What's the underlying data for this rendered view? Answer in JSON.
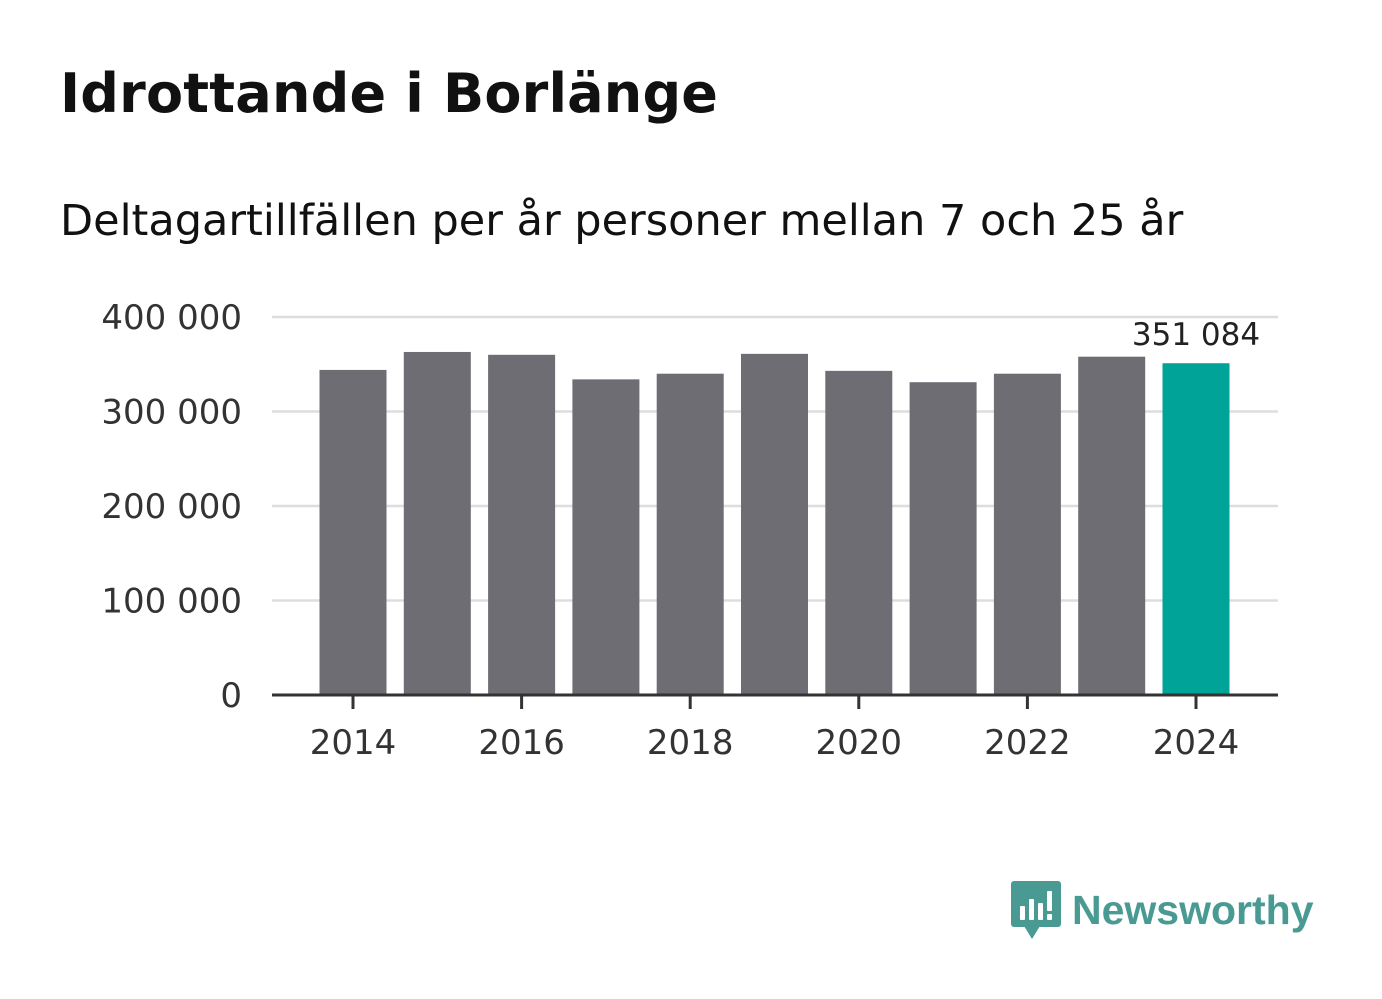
{
  "header": {
    "title": "Idrottande i Borlänge",
    "subtitle": "Deltagartillfällen per år personer mellan 7 och 25 år"
  },
  "chart_data": {
    "type": "bar",
    "title": "Idrottande i Borlänge",
    "subtitle": "Deltagartillfällen per år personer mellan 7 och 25 år",
    "xlabel": "",
    "ylabel": "",
    "categories": [
      "2014",
      "2015",
      "2016",
      "2017",
      "2018",
      "2019",
      "2020",
      "2021",
      "2022",
      "2023",
      "2024"
    ],
    "values": [
      344000,
      363000,
      360000,
      334000,
      340000,
      361000,
      343000,
      331000,
      340000,
      358000,
      351084
    ],
    "x_tick_labels": [
      "2014",
      "2016",
      "2018",
      "2020",
      "2022",
      "2024"
    ],
    "y_ticks": [
      0,
      100000,
      200000,
      300000,
      400000
    ],
    "y_tick_labels": [
      "0",
      "100 000",
      "200 000",
      "300 000",
      "400 000"
    ],
    "ylim": [
      0,
      400000
    ],
    "grid": true,
    "highlight": {
      "category": "2024",
      "label": "351 084"
    },
    "colors": {
      "bar": "#6e6d73",
      "highlight": "#00a398",
      "grid": "#dddddd",
      "axis": "#333333",
      "tick_text": "#333333"
    }
  },
  "brand": {
    "name": "Newsworthy",
    "icon": "newsworthy-logo-icon",
    "color": "#4a9a94"
  }
}
